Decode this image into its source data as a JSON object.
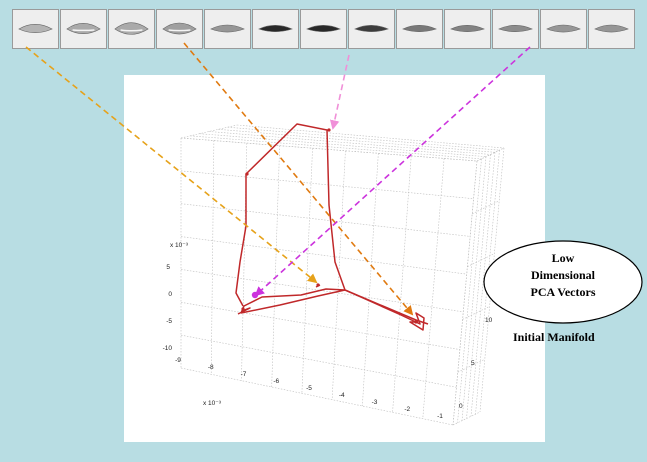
{
  "callout": {
    "lines": [
      "Low",
      "Dimensional",
      "PCA Vectors"
    ]
  },
  "manifold_label": "Initial Manifold",
  "axes": {
    "z_exponent": "x 10⁻³",
    "x_exponent": "x 10⁻³",
    "z_ticks": [
      "5",
      "0",
      "-5",
      "-10"
    ],
    "x_ticks": [
      "-9",
      "-8",
      "-7",
      "-6",
      "-5",
      "-4",
      "-3",
      "-2",
      "-1"
    ],
    "y_ticks": [
      "0",
      "5",
      "10"
    ]
  },
  "mouth_frames": [
    {
      "openness": 0.2,
      "darkness": 0.25
    },
    {
      "openness": 0.35,
      "darkness": 0.3
    },
    {
      "openness": 0.45,
      "darkness": 0.3
    },
    {
      "openness": 0.4,
      "darkness": 0.35
    },
    {
      "openness": 0.1,
      "darkness": 0.4
    },
    {
      "openness": 0.05,
      "darkness": 0.95
    },
    {
      "openness": 0.05,
      "darkness": 0.95
    },
    {
      "openness": 0.05,
      "darkness": 0.85
    },
    {
      "openness": 0.05,
      "darkness": 0.55
    },
    {
      "openness": 0.05,
      "darkness": 0.5
    },
    {
      "openness": 0.05,
      "darkness": 0.45
    },
    {
      "openness": 0.1,
      "darkness": 0.4
    },
    {
      "openness": 0.1,
      "darkness": 0.4
    }
  ],
  "colors": {
    "background": "#b8dde3",
    "trajectory": "#c0282a",
    "arrow_gold": "#e6a21a",
    "arrow_orange": "#e07a10",
    "arrow_pink": "#f090d8",
    "arrow_magenta": "#cc33dd",
    "grid": "#bdbdbd"
  }
}
